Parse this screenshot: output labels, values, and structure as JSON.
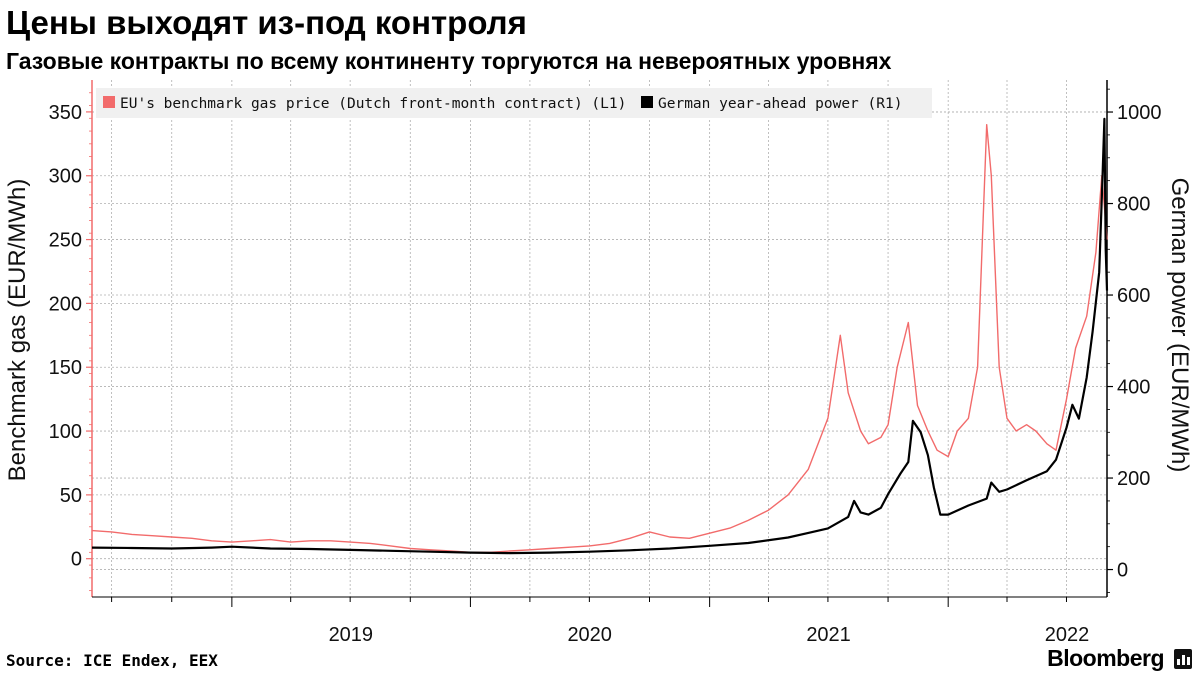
{
  "header": {
    "title": "Цены выходят из-под контроля",
    "subtitle": "Газовые контракты по всему континенту торгуются на невероятных уровнях"
  },
  "footer": {
    "source": "Source: ICE Endex, EEX",
    "brand": "Bloomberg"
  },
  "colors": {
    "gas": "#f26b6b",
    "power": "#000000",
    "grid": "#b0b0b0",
    "legend_bg": "#f0f0f0"
  },
  "chart_data": {
    "type": "line",
    "title": "Цены выходят из-под контроля",
    "subtitle": "Газовые контракты по всему континенту торгуются на невероятных уровнях",
    "x_ticks": [
      "2019",
      "2020",
      "2021",
      "2022"
    ],
    "xlim": [
      "2018-06-01",
      "2022-09-01"
    ],
    "ylabel_left": "Benchmark gas (EUR/MWh)",
    "ylabel_right": "German power (EUR/MWh)",
    "ylim_left": [
      -30,
      375
    ],
    "ylim_right": [
      -60,
      1070
    ],
    "yticks_left": [
      0,
      50,
      100,
      150,
      200,
      250,
      300,
      350
    ],
    "yticks_right": [
      0,
      200,
      400,
      600,
      800,
      1000
    ],
    "grid": true,
    "legend_position": "top-left",
    "series": [
      {
        "name": "EU's benchmark gas price (Dutch front-month contract) (L1)",
        "axis": "left",
        "color": "#f26b6b",
        "points": [
          [
            "2018-06-01",
            22
          ],
          [
            "2018-07-01",
            21
          ],
          [
            "2018-08-01",
            19
          ],
          [
            "2018-09-01",
            18
          ],
          [
            "2018-10-01",
            17
          ],
          [
            "2018-11-01",
            16
          ],
          [
            "2018-12-01",
            14
          ],
          [
            "2019-01-01",
            13
          ],
          [
            "2019-02-01",
            14
          ],
          [
            "2019-03-01",
            15
          ],
          [
            "2019-04-01",
            13
          ],
          [
            "2019-05-01",
            14
          ],
          [
            "2019-06-01",
            14
          ],
          [
            "2019-07-01",
            13
          ],
          [
            "2019-08-01",
            12
          ],
          [
            "2019-09-01",
            10
          ],
          [
            "2019-10-01",
            8
          ],
          [
            "2019-11-01",
            7
          ],
          [
            "2019-12-01",
            6
          ],
          [
            "2020-01-01",
            5
          ],
          [
            "2020-02-01",
            5
          ],
          [
            "2020-03-01",
            6
          ],
          [
            "2020-04-01",
            7
          ],
          [
            "2020-05-01",
            8
          ],
          [
            "2020-06-01",
            9
          ],
          [
            "2020-07-01",
            10
          ],
          [
            "2020-08-01",
            12
          ],
          [
            "2020-09-01",
            16
          ],
          [
            "2020-10-01",
            21
          ],
          [
            "2020-11-01",
            17
          ],
          [
            "2020-12-01",
            16
          ],
          [
            "2021-01-01",
            20
          ],
          [
            "2021-02-01",
            24
          ],
          [
            "2021-03-01",
            30
          ],
          [
            "2021-04-01",
            38
          ],
          [
            "2021-05-01",
            50
          ],
          [
            "2021-06-01",
            70
          ],
          [
            "2021-07-01",
            110
          ],
          [
            "2021-07-20",
            175
          ],
          [
            "2021-08-01",
            130
          ],
          [
            "2021-08-20",
            100
          ],
          [
            "2021-09-01",
            90
          ],
          [
            "2021-09-20",
            95
          ],
          [
            "2021-10-01",
            105
          ],
          [
            "2021-10-15",
            150
          ],
          [
            "2021-11-01",
            185
          ],
          [
            "2021-11-15",
            120
          ],
          [
            "2021-12-01",
            100
          ],
          [
            "2021-12-15",
            85
          ],
          [
            "2022-01-01",
            80
          ],
          [
            "2022-01-15",
            100
          ],
          [
            "2022-02-01",
            110
          ],
          [
            "2022-02-15",
            150
          ],
          [
            "2022-03-01",
            340
          ],
          [
            "2022-03-08",
            300
          ],
          [
            "2022-03-20",
            150
          ],
          [
            "2022-04-01",
            110
          ],
          [
            "2022-04-15",
            100
          ],
          [
            "2022-05-01",
            105
          ],
          [
            "2022-05-15",
            100
          ],
          [
            "2022-06-01",
            90
          ],
          [
            "2022-06-15",
            85
          ],
          [
            "2022-07-01",
            125
          ],
          [
            "2022-07-15",
            165
          ],
          [
            "2022-08-01",
            190
          ],
          [
            "2022-08-15",
            240
          ],
          [
            "2022-08-24",
            300
          ],
          [
            "2022-08-29",
            270
          ],
          [
            "2022-09-01",
            250
          ]
        ]
      },
      {
        "name": "German year-ahead power (R1)",
        "axis": "right",
        "color": "#000000",
        "points": [
          [
            "2018-06-01",
            48
          ],
          [
            "2018-08-01",
            47
          ],
          [
            "2018-10-01",
            46
          ],
          [
            "2018-12-01",
            48
          ],
          [
            "2019-01-01",
            50
          ],
          [
            "2019-03-01",
            46
          ],
          [
            "2019-05-01",
            45
          ],
          [
            "2019-07-01",
            43
          ],
          [
            "2019-09-01",
            41
          ],
          [
            "2019-11-01",
            39
          ],
          [
            "2020-01-01",
            37
          ],
          [
            "2020-03-01",
            36
          ],
          [
            "2020-05-01",
            37
          ],
          [
            "2020-07-01",
            39
          ],
          [
            "2020-09-01",
            42
          ],
          [
            "2020-11-01",
            46
          ],
          [
            "2021-01-01",
            52
          ],
          [
            "2021-03-01",
            58
          ],
          [
            "2021-05-01",
            70
          ],
          [
            "2021-06-01",
            80
          ],
          [
            "2021-07-01",
            90
          ],
          [
            "2021-08-01",
            115
          ],
          [
            "2021-08-10",
            150
          ],
          [
            "2021-08-20",
            125
          ],
          [
            "2021-09-01",
            120
          ],
          [
            "2021-09-20",
            135
          ],
          [
            "2021-10-01",
            165
          ],
          [
            "2021-10-20",
            210
          ],
          [
            "2021-11-01",
            235
          ],
          [
            "2021-11-08",
            325
          ],
          [
            "2021-11-20",
            300
          ],
          [
            "2021-12-01",
            250
          ],
          [
            "2021-12-10",
            180
          ],
          [
            "2021-12-20",
            120
          ],
          [
            "2022-01-01",
            120
          ],
          [
            "2022-02-01",
            140
          ],
          [
            "2022-03-01",
            155
          ],
          [
            "2022-03-08",
            190
          ],
          [
            "2022-03-20",
            170
          ],
          [
            "2022-04-01",
            175
          ],
          [
            "2022-05-01",
            195
          ],
          [
            "2022-06-01",
            215
          ],
          [
            "2022-06-15",
            240
          ],
          [
            "2022-07-01",
            310
          ],
          [
            "2022-07-10",
            360
          ],
          [
            "2022-07-20",
            330
          ],
          [
            "2022-08-01",
            420
          ],
          [
            "2022-08-10",
            520
          ],
          [
            "2022-08-20",
            650
          ],
          [
            "2022-08-25",
            850
          ],
          [
            "2022-08-28",
            985
          ],
          [
            "2022-08-30",
            700
          ],
          [
            "2022-09-01",
            610
          ]
        ]
      }
    ]
  }
}
